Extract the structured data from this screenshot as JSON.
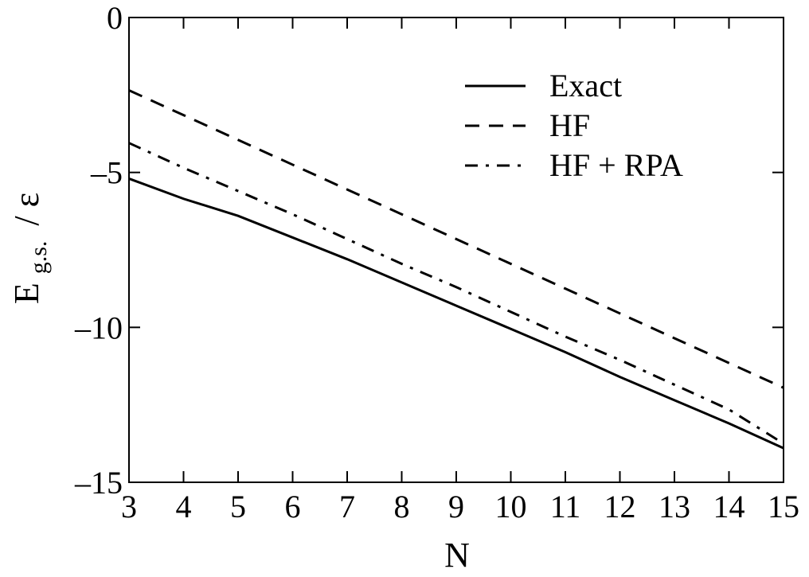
{
  "chart_data": {
    "type": "line",
    "xlabel": "N",
    "ylabel": {
      "main": "E",
      "subscript": "g.s.",
      "suffix": "/ ε"
    },
    "xlim": [
      3,
      15
    ],
    "ylim": [
      -15,
      0
    ],
    "xticks": [
      3,
      4,
      5,
      6,
      7,
      8,
      9,
      10,
      11,
      12,
      13,
      14,
      15
    ],
    "yticks": [
      0,
      -5,
      -10,
      -15
    ],
    "xtick_labels": [
      "3",
      "4",
      "5",
      "6",
      "7",
      "8",
      "9",
      "10",
      "11",
      "12",
      "13",
      "14",
      "15"
    ],
    "ytick_labels": [
      "0",
      "–5",
      "–10",
      "–15"
    ],
    "legend_position": "top-right",
    "grid": false,
    "series": [
      {
        "name": "Exact",
        "style": "solid",
        "x": [
          3,
          4,
          5,
          6,
          7,
          8,
          9,
          10,
          11,
          12,
          13,
          14,
          15
        ],
        "y": [
          -5.2,
          -5.85,
          -6.4,
          -7.1,
          -7.8,
          -8.55,
          -9.3,
          -10.05,
          -10.8,
          -11.6,
          -12.35,
          -13.1,
          -13.9
        ]
      },
      {
        "name": "HF",
        "style": "dashed",
        "x": [
          3,
          4,
          5,
          6,
          7,
          8,
          9,
          10,
          11,
          12,
          13,
          14,
          15
        ],
        "y": [
          -2.35,
          -3.15,
          -3.95,
          -4.75,
          -5.55,
          -6.35,
          -7.15,
          -7.95,
          -8.75,
          -9.55,
          -10.35,
          -11.15,
          -11.95
        ]
      },
      {
        "name": "HF + RPA",
        "style": "dashdot",
        "x": [
          3,
          4,
          5,
          6,
          7,
          8,
          9,
          10,
          11,
          12,
          13,
          14,
          15
        ],
        "y": [
          -4.05,
          -4.85,
          -5.6,
          -6.35,
          -7.15,
          -7.95,
          -8.7,
          -9.5,
          -10.3,
          -11.05,
          -11.85,
          -12.65,
          -13.75
        ]
      }
    ],
    "colors": {
      "line": "#000000",
      "background": "#ffffff"
    }
  }
}
